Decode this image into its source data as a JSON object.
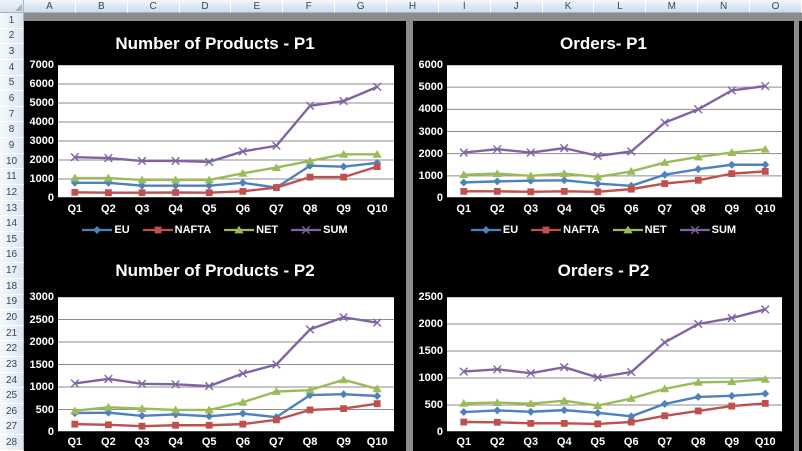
{
  "window": {
    "app_title": "Excel worksheet with sales dashboard charts"
  },
  "grid": {
    "corner_label": "",
    "columns": [
      "A",
      "B",
      "C",
      "D",
      "E",
      "F",
      "G",
      "H",
      "I",
      "J",
      "K",
      "L",
      "M",
      "N",
      "O"
    ],
    "rows": [
      "1",
      "2",
      "3",
      "4",
      "5",
      "6",
      "7",
      "8",
      "9",
      "10",
      "11",
      "12",
      "13",
      "14",
      "15",
      "16",
      "17",
      "18",
      "19",
      "20",
      "21",
      "22",
      "23",
      "24",
      "25",
      "26",
      "27",
      "28"
    ]
  },
  "colors": {
    "chart_background": "#000000",
    "plot_background": "#FFFFFF",
    "gridline": "#8e8e8e",
    "axis_line": "#000000",
    "canvas_gray": "#8c8c8c",
    "series_eu": "#4F81BD",
    "series_nafta": "#C0504D",
    "series_net": "#9BBB59",
    "series_sum": "#8064A2",
    "chart_text": "#FFFFFF"
  },
  "chart_data": [
    {
      "type": "line",
      "title": "Number of Products - P1",
      "categories": [
        "Q1",
        "Q2",
        "Q3",
        "Q4",
        "Q5",
        "Q6",
        "Q7",
        "Q8",
        "Q9",
        "Q10"
      ],
      "ylim": [
        0,
        7000
      ],
      "ytick_step": 1000,
      "grid": true,
      "legend_position": "bottom",
      "legend_visible": true,
      "series": [
        {
          "name": "EU",
          "marker": "diamond",
          "color": "#4F81BD",
          "values": [
            800,
            800,
            650,
            650,
            650,
            800,
            550,
            1700,
            1650,
            1850
          ]
        },
        {
          "name": "NAFTA",
          "marker": "square",
          "color": "#C0504D",
          "values": [
            300,
            280,
            280,
            290,
            280,
            350,
            550,
            1100,
            1100,
            1650
          ]
        },
        {
          "name": "NET",
          "marker": "triangle",
          "color": "#9BBB59",
          "values": [
            1050,
            1050,
            950,
            950,
            950,
            1300,
            1600,
            1950,
            2300,
            2300
          ]
        },
        {
          "name": "SUM",
          "marker": "x",
          "color": "#8064A2",
          "values": [
            2150,
            2100,
            1950,
            1950,
            1900,
            2450,
            2750,
            4850,
            5100,
            5850
          ]
        }
      ]
    },
    {
      "type": "line",
      "title": "Orders- P1",
      "categories": [
        "Q1",
        "Q2",
        "Q3",
        "Q4",
        "Q5",
        "Q6",
        "Q7",
        "Q8",
        "Q9",
        "Q10"
      ],
      "ylim": [
        0,
        6000
      ],
      "ytick_step": 1000,
      "grid": true,
      "legend_position": "bottom",
      "legend_visible": true,
      "series": [
        {
          "name": "EU",
          "marker": "diamond",
          "color": "#4F81BD",
          "values": [
            700,
            750,
            780,
            800,
            650,
            550,
            1050,
            1300,
            1500,
            1500
          ]
        },
        {
          "name": "NAFTA",
          "marker": "square",
          "color": "#C0504D",
          "values": [
            300,
            300,
            280,
            300,
            280,
            400,
            650,
            800,
            1100,
            1200
          ]
        },
        {
          "name": "NET",
          "marker": "triangle",
          "color": "#9BBB59",
          "values": [
            1050,
            1100,
            1000,
            1100,
            950,
            1200,
            1600,
            1850,
            2050,
            2200
          ]
        },
        {
          "name": "SUM",
          "marker": "x",
          "color": "#8064A2",
          "values": [
            2050,
            2200,
            2050,
            2250,
            1900,
            2100,
            3400,
            4000,
            4850,
            5050
          ]
        }
      ]
    },
    {
      "type": "line",
      "title": "Number of Products - P2",
      "categories": [
        "Q1",
        "Q2",
        "Q3",
        "Q4",
        "Q5",
        "Q6",
        "Q7",
        "Q8",
        "Q9",
        "Q10"
      ],
      "ylim": [
        0,
        3000
      ],
      "ytick_step": 500,
      "grid": true,
      "legend_position": "bottom",
      "legend_visible": false,
      "series": [
        {
          "name": "EU",
          "marker": "diamond",
          "color": "#4F81BD",
          "values": [
            420,
            430,
            360,
            390,
            350,
            410,
            330,
            820,
            840,
            800
          ]
        },
        {
          "name": "NAFTA",
          "marker": "square",
          "color": "#C0504D",
          "values": [
            175,
            160,
            130,
            150,
            150,
            175,
            270,
            490,
            520,
            630
          ]
        },
        {
          "name": "NET",
          "marker": "triangle",
          "color": "#9BBB59",
          "values": [
            470,
            550,
            520,
            490,
            490,
            660,
            900,
            930,
            1160,
            960
          ]
        },
        {
          "name": "SUM",
          "marker": "x",
          "color": "#8064A2",
          "values": [
            1080,
            1180,
            1070,
            1060,
            1020,
            1300,
            1500,
            2280,
            2550,
            2430
          ]
        }
      ]
    },
    {
      "type": "line",
      "title": "Orders - P2",
      "categories": [
        "Q1",
        "Q2",
        "Q3",
        "Q4",
        "Q5",
        "Q6",
        "Q7",
        "Q8",
        "Q9",
        "Q10"
      ],
      "ylim": [
        0,
        2500
      ],
      "ytick_step": 500,
      "grid": true,
      "legend_position": "bottom",
      "legend_visible": false,
      "series": [
        {
          "name": "EU",
          "marker": "diamond",
          "color": "#4F81BD",
          "values": [
            370,
            400,
            375,
            405,
            355,
            290,
            520,
            650,
            670,
            710
          ]
        },
        {
          "name": "NAFTA",
          "marker": "square",
          "color": "#C0504D",
          "values": [
            185,
            180,
            160,
            160,
            150,
            185,
            300,
            390,
            480,
            530
          ]
        },
        {
          "name": "NET",
          "marker": "triangle",
          "color": "#9BBB59",
          "values": [
            530,
            545,
            525,
            580,
            490,
            620,
            800,
            920,
            930,
            975
          ]
        },
        {
          "name": "SUM",
          "marker": "x",
          "color": "#8064A2",
          "values": [
            1120,
            1160,
            1090,
            1200,
            1010,
            1110,
            1660,
            2000,
            2110,
            2270
          ]
        }
      ]
    }
  ]
}
